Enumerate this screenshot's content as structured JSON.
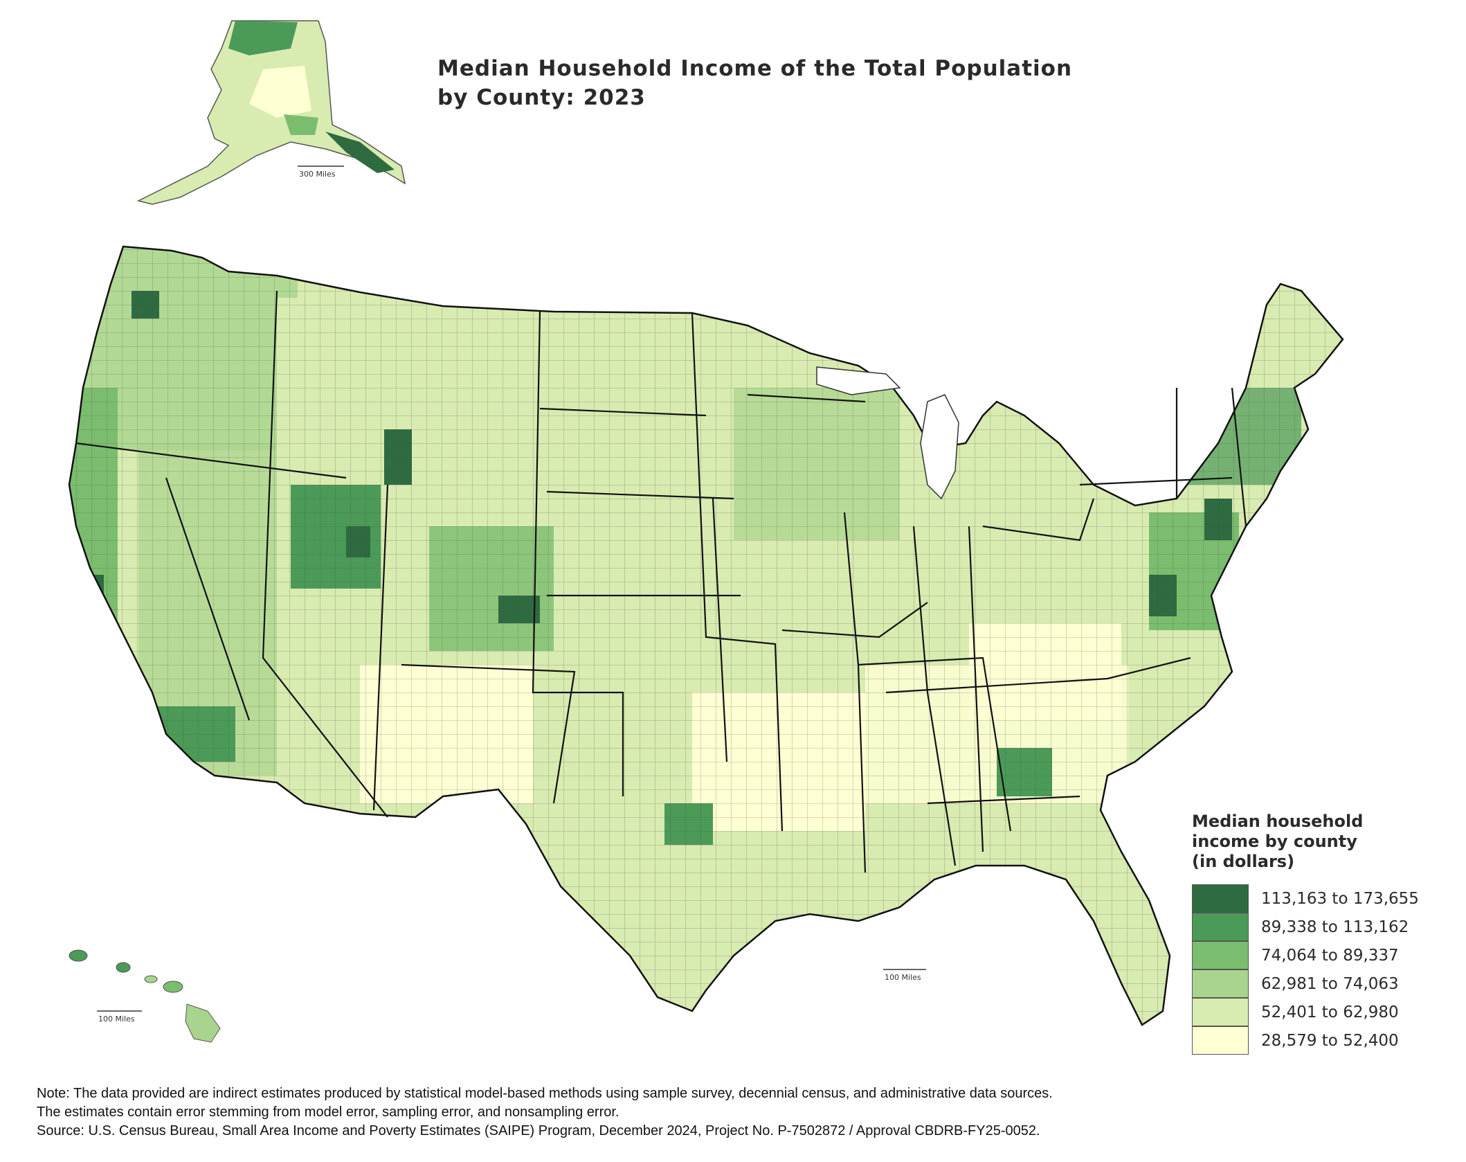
{
  "title": {
    "line1": "Median Household Income of the Total Population",
    "line2": "by County: 2023"
  },
  "legend": {
    "title_lines": [
      "Median household",
      "income by county",
      "(in dollars)"
    ],
    "classes": [
      {
        "label": "113,163 to 173,655",
        "color": "#2e6b40"
      },
      {
        "label": "89,338 to 113,162",
        "color": "#4b9a58"
      },
      {
        "label": "74,064 to 89,337",
        "color": "#7bbd6e"
      },
      {
        "label": "62,981 to 74,063",
        "color": "#a9d48d"
      },
      {
        "label": "52,401 to 62,980",
        "color": "#d8ebb0"
      },
      {
        "label": "28,579 to 52,400",
        "color": "#ffffd4"
      }
    ]
  },
  "scale_bars": {
    "alaska": "300 Miles",
    "hawaii": "100 Miles",
    "conus": "100 Miles"
  },
  "notes": [
    "Note: The data provided are indirect estimates produced by statistical model-based methods using sample survey, decennial census, and administrative data sources.",
    "The estimates contain error stemming from model error, sampling error, and nonsampling error.",
    "Source: U.S. Census Bureau, Small Area Income and Poverty Estimates (SAIPE) Program, December 2024, Project No. P-7502872 / Approval CBDRB-FY25-0052."
  ]
}
